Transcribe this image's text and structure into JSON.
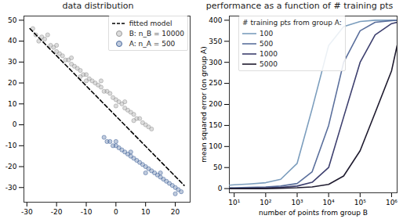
{
  "chart_data": [
    {
      "type": "scatter",
      "title": "data distribution",
      "xlim": [
        -31,
        25
      ],
      "ylim": [
        -37,
        52
      ],
      "xticks": [
        -30,
        -20,
        -10,
        0,
        10,
        20
      ],
      "yticks": [
        -30,
        -20,
        -10,
        0,
        10,
        20,
        30,
        40,
        50
      ],
      "legend": "upper right",
      "series": [
        {
          "name": "fitted model",
          "type": "line",
          "line_style": "dashed",
          "color": "#000000",
          "x": [
            -29,
            23
          ],
          "values": [
            46,
            -29
          ]
        },
        {
          "name": "B: n_B = 10000",
          "type": "scatter",
          "marker": "circle",
          "color": "#9a9a9a",
          "x": [
            -28,
            -27,
            -26,
            -25,
            -24,
            -23,
            -22,
            -21,
            -20,
            -20,
            -19,
            -18,
            -17,
            -16,
            -15,
            -15,
            -14,
            -13,
            -12,
            -12,
            -11,
            -10,
            -10,
            -9,
            -8,
            -7,
            -6,
            -5,
            -5,
            -4,
            -3,
            -2,
            -1,
            0,
            0,
            1,
            2,
            3,
            3,
            4,
            5,
            6,
            6,
            7,
            8,
            9,
            10,
            11,
            12
          ],
          "values": [
            46,
            43,
            40,
            42,
            41,
            43,
            38,
            37,
            35,
            38,
            34,
            33,
            31,
            31,
            29,
            32,
            28,
            27,
            26,
            23,
            24,
            24,
            21,
            22,
            21,
            20,
            19,
            18,
            21,
            16,
            16,
            15,
            13,
            12,
            9,
            11,
            10,
            8,
            11,
            7,
            6,
            5,
            2,
            3,
            3,
            1,
            0,
            -1,
            -2
          ]
        },
        {
          "name": "A: n_A = 500",
          "type": "scatter",
          "marker": "circle",
          "color": "#4a6a9e",
          "x": [
            -4,
            -3,
            -2,
            -1,
            0,
            0,
            1,
            2,
            3,
            4,
            5,
            5,
            6,
            7,
            8,
            9,
            10,
            10,
            11,
            12,
            13,
            14,
            15,
            15,
            16,
            17,
            18,
            19,
            20,
            20,
            21,
            22
          ],
          "values": [
            -6,
            -8,
            -8,
            -10,
            -10,
            -8,
            -11,
            -12,
            -13,
            -14,
            -15,
            -13,
            -16,
            -17,
            -18,
            -19,
            -20,
            -23,
            -21,
            -22,
            -23,
            -24,
            -25,
            -23,
            -26,
            -27,
            -28,
            -29,
            -30,
            -33,
            -31,
            -32
          ]
        }
      ]
    },
    {
      "type": "line",
      "title": "performance as a function of # training pts",
      "x_label": "number of points from group B",
      "y_label": "mean squared error (on group A)",
      "log": "x",
      "x": [
        7,
        10,
        30,
        100,
        300,
        1000,
        3000,
        10000,
        30000,
        100000,
        300000,
        1000000,
        1500000
      ],
      "xlim": [
        7,
        1500000
      ],
      "xticks": [
        {
          "value": 10,
          "label": "10¹"
        },
        {
          "value": 100,
          "label": "10²"
        },
        {
          "value": 1000,
          "label": "10³"
        },
        {
          "value": 10000,
          "label": "10⁴"
        },
        {
          "value": 100000,
          "label": "10⁵"
        },
        {
          "value": 1000000,
          "label": "10⁶"
        }
      ],
      "ylim": [
        -10,
        410
      ],
      "yticks": [
        0,
        50,
        100,
        150,
        200,
        250,
        300,
        350,
        400
      ],
      "legend": "upper left",
      "legend_title": "# training pts from group A:",
      "series": [
        {
          "name": "100",
          "color": "#7b9dbd",
          "values": [
            8,
            9,
            11,
            14,
            22,
            60,
            190,
            340,
            385,
            397,
            400,
            400,
            400
          ]
        },
        {
          "name": "500",
          "color": "#5a6f9c",
          "values": [
            2,
            2,
            3,
            4,
            6,
            12,
            40,
            150,
            300,
            375,
            395,
            399,
            400
          ]
        },
        {
          "name": "1000",
          "color": "#3d3f6e",
          "values": [
            0,
            0,
            1,
            2,
            3,
            6,
            15,
            50,
            170,
            300,
            365,
            392,
            395
          ]
        },
        {
          "name": "5000",
          "color": "#1e1a2e",
          "values": [
            0,
            0,
            0,
            0,
            1,
            2,
            4,
            10,
            30,
            90,
            180,
            280,
            340
          ]
        }
      ]
    }
  ]
}
